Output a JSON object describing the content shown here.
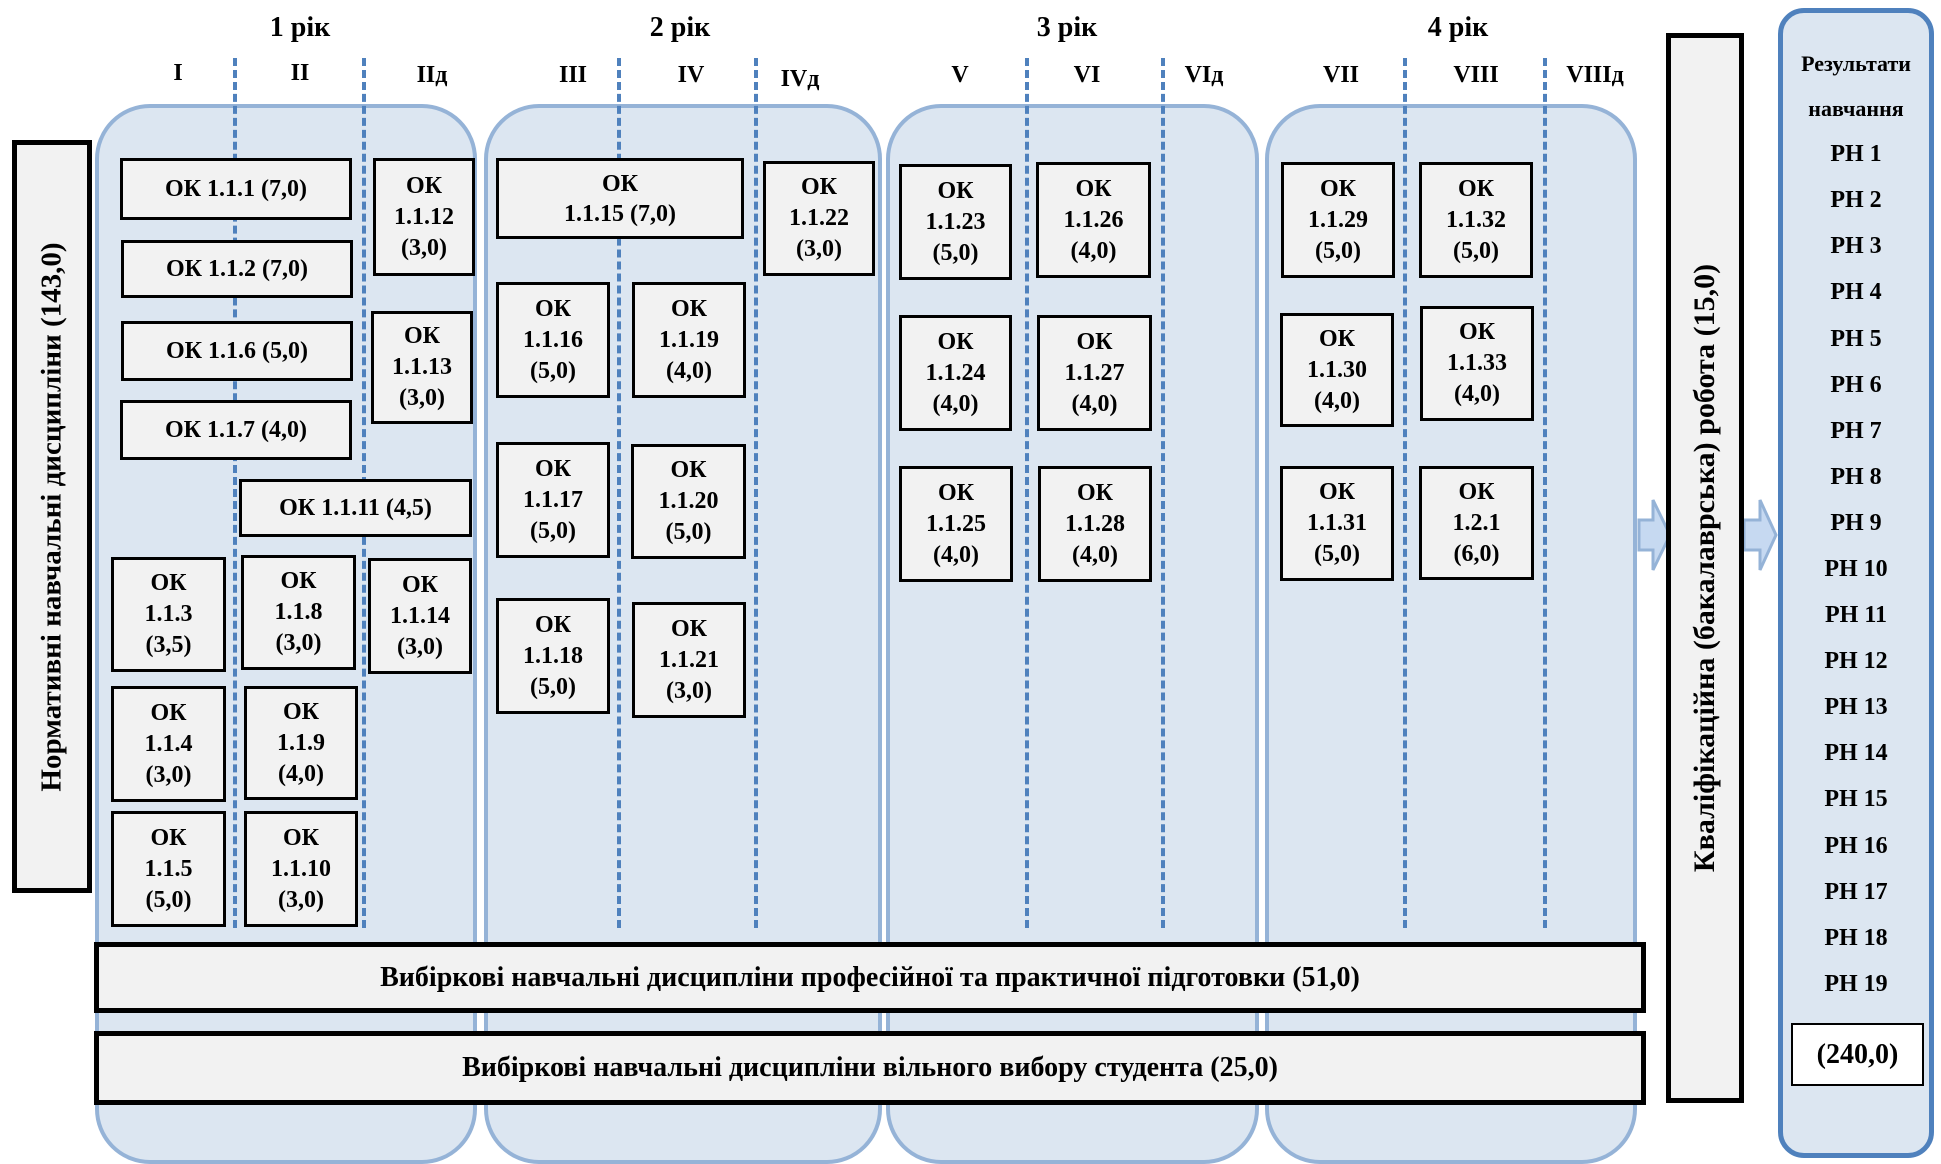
{
  "years": [
    "1 рік",
    "2 рік",
    "3 рік",
    "4 рік"
  ],
  "semesters": [
    "I",
    "II",
    "IIд",
    "III",
    "IV",
    "IVд",
    "V",
    "VI",
    "VIд",
    "VII",
    "VIII",
    "VIIIд"
  ],
  "mandatory_label": "Нормативні навчальні дисципліни (143,0)",
  "courses": [
    "ОК 1.1.1 (7,0)",
    "ОК 1.1.2 (7,0)",
    "ОК 1.1.6 (5,0)",
    "ОК 1.1.7 (4,0)",
    "ОК 1.1.11 (4,5)",
    "ОК\n1.1.12\n(3,0)",
    "ОК\n1.1.13\n(3,0)",
    "ОК\n1.1.3\n(3,5)",
    "ОК\n1.1.8\n(3,0)",
    "ОК\n1.1.14\n(3,0)",
    "ОК\n1.1.4\n(3,0)",
    "ОК\n1.1.9\n(4,0)",
    "ОК\n1.1.5\n(5,0)",
    "ОК\n1.1.10\n(3,0)",
    "ОК\n1.1.15 (7,0)",
    "ОК\n1.1.22\n(3,0)",
    "ОК\n1.1.16\n(5,0)",
    "ОК\n1.1.19\n(4,0)",
    "ОК\n1.1.17\n(5,0)",
    "ОК\n1.1.20\n(5,0)",
    "ОК\n1.1.18\n(5,0)",
    "ОК\n1.1.21\n(3,0)",
    "ОК\n1.1.23\n(5,0)",
    "ОК\n1.1.26\n(4,0)",
    "ОК\n1.1.24\n(4,0)",
    "ОК\n1.1.27\n(4,0)",
    "ОК\n1.1.25\n(4,0)",
    "ОК\n1.1.28\n(4,0)",
    "ОК\n1.1.29\n(5,0)",
    "ОК\n1.1.32\n(5,0)",
    "ОК\n1.1.30\n(4,0)",
    "ОК\n1.1.33\n(4,0)",
    "ОК\n1.1.31\n(5,0)",
    "ОК\n1.2.1\n(6,0)"
  ],
  "elective_professional": "Вибіркові навчальні дисципліни професійної та практичної підготовки (51,0)",
  "elective_free": "Вибіркові навчальні дисципліни вільного вибору студента (25,0)",
  "thesis_label": "Кваліфікаційна (бакалаврська) робота (15,0)",
  "results": {
    "title_line1": "Результати",
    "title_line2": "навчання",
    "items": [
      "РН 1",
      "РН 2",
      "РН 3",
      "РН 4",
      "РН 5",
      "РН 6",
      "РН 7",
      "РН 8",
      "РН 9",
      "РН 10",
      "РН 11",
      "РН 12",
      "РН 13",
      "РН 14",
      "РН 15",
      "РН 16",
      "РН 17",
      "РН 18",
      "РН 19"
    ],
    "total": "(240,0)"
  },
  "colors": {
    "panel_fill": "#dce6f1",
    "panel_border": "#95b3d7",
    "dash": "#4f81bd",
    "box_fill": "#f2f2f2"
  }
}
